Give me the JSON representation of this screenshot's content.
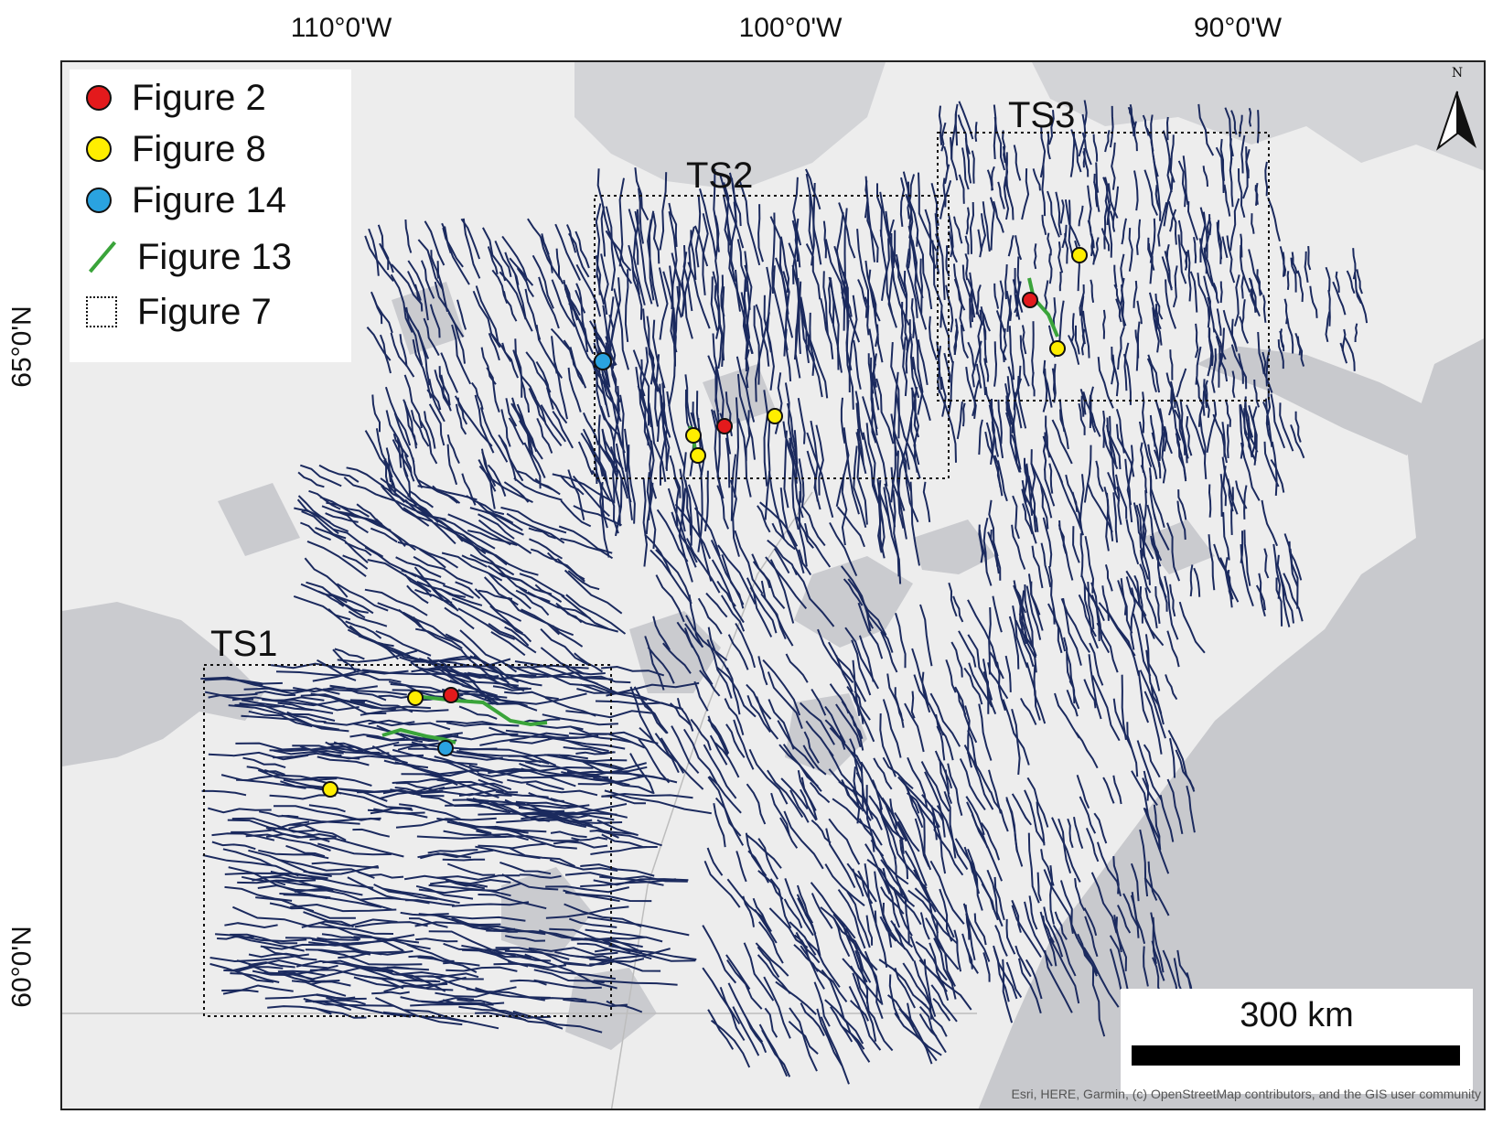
{
  "axes": {
    "top_ticks": [
      "110°0'W",
      "100°0'W",
      "90°0'W"
    ],
    "left_ticks": [
      "65°0'N",
      "60°0'N"
    ]
  },
  "legend": {
    "items": [
      {
        "label": "Figure 2",
        "kind": "dot",
        "color": "#e31a1c"
      },
      {
        "label": "Figure 8",
        "kind": "dot",
        "color": "#ffee00"
      },
      {
        "label": "Figure 14",
        "kind": "dot",
        "color": "#2aa3e0"
      },
      {
        "label": "Figure 13",
        "kind": "line",
        "color": "#3aa43a"
      },
      {
        "label": "Figure 7",
        "kind": "box",
        "color": "#111111"
      }
    ]
  },
  "study_areas": [
    "TS1",
    "TS2",
    "TS3"
  ],
  "scale_bar": {
    "label": "300 km"
  },
  "north_arrow": {
    "label": "N"
  },
  "attribution": "Esri, HERE, Garmin, (c) OpenStreetMap contributors, and the GIS user community",
  "colors": {
    "land": "#ededed",
    "water": "#cacbcf",
    "ocean": "#c8c9cd",
    "esker_lines": "#1b2a5e",
    "figure2": "#e31a1c",
    "figure8": "#ffee00",
    "figure14": "#2aa3e0",
    "figure13": "#3aa43a"
  }
}
